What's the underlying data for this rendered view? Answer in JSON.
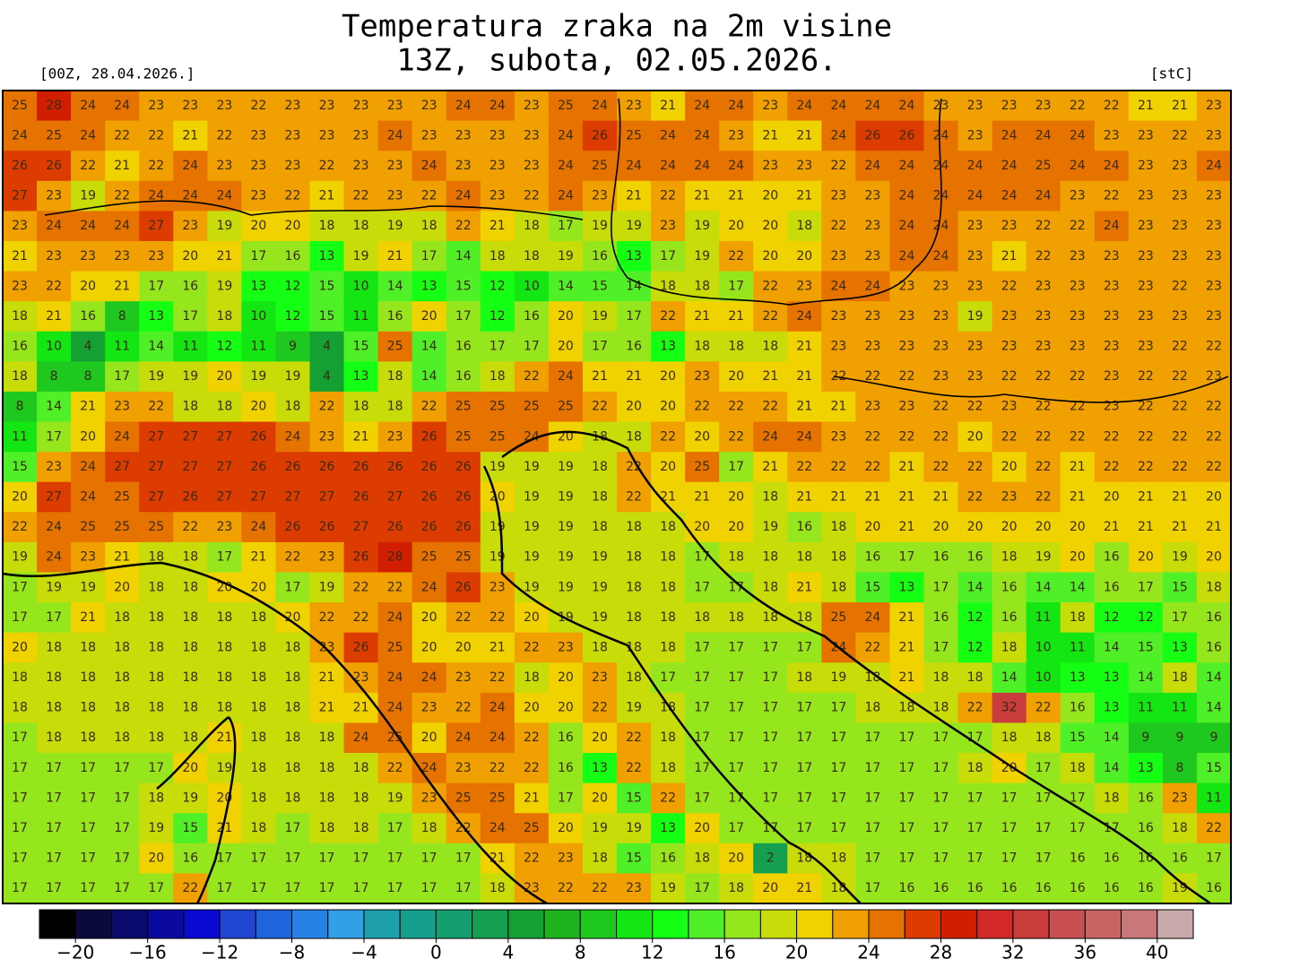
{
  "header": {
    "title": "Temperatura zraka na 2m visine",
    "subtitle": "13Z, subota, 02.05.2026.",
    "run": "[00Z, 28.04.2026.]",
    "unit": "[stC]"
  },
  "map": {
    "rows": [
      [
        25,
        28,
        24,
        24,
        23,
        23,
        23,
        22,
        23,
        23,
        23,
        23,
        23,
        24,
        24,
        23,
        25,
        24,
        23,
        21,
        24,
        24,
        23,
        24,
        24,
        24,
        24,
        23,
        23,
        23,
        23,
        22,
        22,
        21,
        21,
        23
      ],
      [
        24,
        25,
        24,
        22,
        22,
        21,
        22,
        23,
        23,
        23,
        23,
        24,
        23,
        23,
        23,
        23,
        24,
        26,
        25,
        24,
        24,
        23,
        21,
        21,
        24,
        26,
        26,
        24,
        23,
        24,
        24,
        24,
        23,
        23,
        22,
        23
      ],
      [
        26,
        26,
        22,
        21,
        22,
        24,
        23,
        23,
        23,
        22,
        23,
        23,
        24,
        23,
        23,
        23,
        24,
        25,
        24,
        24,
        24,
        24,
        23,
        23,
        22,
        24,
        24,
        24,
        24,
        24,
        25,
        24,
        24,
        23,
        23,
        24
      ],
      [
        27,
        23,
        19,
        22,
        24,
        24,
        24,
        23,
        22,
        21,
        22,
        23,
        22,
        24,
        23,
        22,
        24,
        23,
        21,
        22,
        21,
        21,
        20,
        21,
        23,
        23,
        24,
        24,
        24,
        24,
        24,
        23,
        22,
        23,
        23,
        23
      ],
      [
        23,
        24,
        24,
        24,
        27,
        23,
        19,
        20,
        20,
        18,
        18,
        19,
        18,
        22,
        21,
        18,
        17,
        19,
        19,
        23,
        19,
        20,
        20,
        18,
        22,
        23,
        24,
        24,
        23,
        23,
        22,
        22,
        24,
        23,
        23,
        23
      ],
      [
        21,
        23,
        23,
        23,
        23,
        20,
        21,
        17,
        16,
        13,
        19,
        21,
        17,
        14,
        18,
        18,
        19,
        16,
        13,
        17,
        19,
        22,
        20,
        20,
        23,
        23,
        24,
        24,
        23,
        21,
        22,
        23,
        23,
        23,
        23,
        23
      ],
      [
        23,
        22,
        20,
        21,
        17,
        16,
        19,
        13,
        12,
        15,
        10,
        14,
        13,
        15,
        12,
        10,
        14,
        15,
        14,
        18,
        18,
        17,
        22,
        23,
        24,
        24,
        23,
        23,
        23,
        22,
        23,
        23,
        23,
        23,
        22,
        23
      ],
      [
        18,
        21,
        16,
        8,
        13,
        17,
        18,
        10,
        12,
        15,
        11,
        16,
        20,
        17,
        12,
        16,
        20,
        19,
        17,
        22,
        21,
        21,
        22,
        24,
        23,
        23,
        23,
        23,
        19,
        23,
        23,
        23,
        23,
        23,
        23,
        23
      ],
      [
        16,
        10,
        4,
        11,
        14,
        11,
        12,
        11,
        9,
        4,
        15,
        25,
        14,
        16,
        17,
        17,
        20,
        17,
        16,
        13,
        18,
        18,
        18,
        21,
        23,
        23,
        23,
        23,
        23,
        23,
        23,
        23,
        23,
        23,
        22,
        22
      ],
      [
        18,
        8,
        8,
        17,
        19,
        19,
        20,
        19,
        19,
        4,
        13,
        18,
        14,
        16,
        18,
        22,
        24,
        21,
        21,
        20,
        23,
        20,
        21,
        21,
        22,
        22,
        22,
        23,
        23,
        22,
        22,
        22,
        23,
        22,
        22,
        23
      ],
      [
        8,
        14,
        21,
        23,
        22,
        18,
        18,
        20,
        18,
        22,
        18,
        18,
        22,
        25,
        25,
        25,
        25,
        22,
        20,
        20,
        22,
        22,
        22,
        21,
        21,
        23,
        23,
        22,
        22,
        23,
        22,
        22,
        23,
        22,
        22,
        22
      ],
      [
        11,
        17,
        20,
        24,
        27,
        27,
        27,
        26,
        24,
        23,
        21,
        23,
        26,
        25,
        25,
        24,
        20,
        18,
        18,
        22,
        20,
        22,
        24,
        24,
        23,
        22,
        22,
        22,
        20,
        22,
        22,
        22,
        22,
        22,
        22,
        22
      ],
      [
        15,
        23,
        24,
        27,
        27,
        27,
        27,
        26,
        26,
        26,
        26,
        26,
        26,
        26,
        19,
        19,
        19,
        18,
        22,
        20,
        25,
        17,
        21,
        22,
        22,
        22,
        21,
        22,
        22,
        20,
        22,
        21,
        22,
        22,
        22,
        22
      ],
      [
        20,
        27,
        24,
        25,
        27,
        26,
        27,
        27,
        27,
        27,
        26,
        27,
        26,
        26,
        20,
        19,
        19,
        18,
        22,
        21,
        21,
        20,
        18,
        21,
        21,
        21,
        21,
        21,
        22,
        23,
        22,
        21,
        20,
        21,
        21,
        20
      ],
      [
        22,
        24,
        25,
        25,
        25,
        22,
        23,
        24,
        26,
        26,
        27,
        26,
        26,
        26,
        19,
        19,
        19,
        18,
        18,
        18,
        20,
        20,
        19,
        16,
        18,
        20,
        21,
        20,
        20,
        20,
        20,
        20,
        21,
        21,
        21,
        21
      ],
      [
        19,
        24,
        23,
        21,
        18,
        18,
        17,
        21,
        22,
        23,
        26,
        28,
        25,
        25,
        19,
        19,
        19,
        19,
        18,
        18,
        17,
        18,
        18,
        18,
        18,
        16,
        17,
        16,
        16,
        18,
        19,
        20,
        16,
        20,
        19,
        20
      ],
      [
        17,
        19,
        19,
        20,
        18,
        18,
        20,
        20,
        17,
        19,
        22,
        22,
        24,
        26,
        23,
        19,
        19,
        19,
        18,
        18,
        17,
        17,
        18,
        21,
        18,
        15,
        13,
        17,
        14,
        16,
        14,
        14,
        16,
        17,
        15,
        18
      ],
      [
        17,
        17,
        21,
        18,
        18,
        18,
        18,
        18,
        20,
        22,
        22,
        24,
        20,
        22,
        22,
        20,
        19,
        19,
        18,
        18,
        18,
        18,
        18,
        18,
        25,
        24,
        21,
        16,
        12,
        16,
        11,
        18,
        12,
        12,
        17,
        16
      ],
      [
        20,
        18,
        18,
        18,
        18,
        18,
        18,
        18,
        18,
        23,
        26,
        25,
        20,
        20,
        21,
        22,
        23,
        18,
        18,
        18,
        17,
        17,
        17,
        17,
        24,
        22,
        21,
        17,
        12,
        18,
        10,
        11,
        14,
        15,
        13,
        16
      ],
      [
        18,
        18,
        18,
        18,
        18,
        18,
        18,
        18,
        18,
        21,
        23,
        24,
        24,
        23,
        22,
        18,
        20,
        23,
        18,
        17,
        17,
        17,
        17,
        18,
        19,
        18,
        21,
        18,
        18,
        14,
        10,
        13,
        13,
        14,
        18,
        14
      ],
      [
        18,
        18,
        18,
        18,
        18,
        18,
        18,
        18,
        18,
        21,
        21,
        24,
        23,
        22,
        24,
        20,
        20,
        22,
        19,
        18,
        17,
        17,
        17,
        17,
        17,
        18,
        18,
        18,
        22,
        32,
        22,
        16,
        13,
        11,
        11,
        14
      ],
      [
        17,
        18,
        18,
        18,
        18,
        18,
        21,
        18,
        18,
        18,
        24,
        25,
        20,
        24,
        24,
        22,
        16,
        20,
        22,
        18,
        17,
        17,
        17,
        17,
        17,
        17,
        17,
        17,
        17,
        18,
        18,
        15,
        14,
        9,
        9,
        9
      ],
      [
        17,
        17,
        17,
        17,
        17,
        20,
        19,
        18,
        18,
        18,
        18,
        22,
        24,
        23,
        22,
        22,
        16,
        13,
        22,
        18,
        17,
        17,
        17,
        17,
        17,
        17,
        17,
        17,
        18,
        20,
        17,
        18,
        14,
        13,
        8,
        15
      ],
      [
        17,
        17,
        17,
        17,
        18,
        19,
        20,
        18,
        18,
        18,
        18,
        19,
        23,
        25,
        25,
        21,
        17,
        20,
        15,
        22,
        17,
        17,
        17,
        17,
        17,
        17,
        17,
        17,
        17,
        17,
        17,
        17,
        18,
        16,
        23,
        11
      ],
      [
        17,
        17,
        17,
        17,
        19,
        15,
        21,
        18,
        17,
        18,
        18,
        17,
        18,
        22,
        24,
        25,
        20,
        19,
        19,
        13,
        20,
        17,
        17,
        17,
        17,
        17,
        17,
        17,
        17,
        17,
        17,
        17,
        17,
        16,
        18,
        22
      ],
      [
        17,
        17,
        17,
        17,
        20,
        16,
        17,
        17,
        17,
        17,
        17,
        17,
        17,
        17,
        21,
        22,
        23,
        18,
        15,
        16,
        18,
        20,
        2,
        18,
        18,
        17,
        17,
        17,
        17,
        17,
        17,
        16,
        16,
        16,
        16,
        17
      ],
      [
        17,
        17,
        17,
        17,
        17,
        22,
        17,
        17,
        17,
        17,
        17,
        17,
        17,
        17,
        18,
        23,
        22,
        22,
        23,
        19,
        17,
        18,
        20,
        21,
        18,
        17,
        16,
        16,
        16,
        16,
        16,
        16,
        16,
        16,
        19,
        16
      ]
    ]
  },
  "colorbar": {
    "lim": [
      -22,
      42
    ],
    "colors": [
      "#000000",
      "#0a0a3c",
      "#0a0a6e",
      "#0a0aa0",
      "#0a0ad2",
      "#1e46d2",
      "#1e64dc",
      "#2882e6",
      "#32a0e6",
      "#1ea0aa",
      "#14a08c",
      "#14a06e",
      "#14a050",
      "#14a032",
      "#1eb41e",
      "#1ec81e",
      "#14e614",
      "#14ff14",
      "#50f028",
      "#96e61e",
      "#c8dc0a",
      "#f0d200",
      "#f0a000",
      "#e67300",
      "#dc3c00",
      "#d21e00",
      "#d22828",
      "#c83c3c",
      "#c85050",
      "#c86464",
      "#c87878",
      "#c8aaaa"
    ],
    "ticks": [
      {
        "value": -20,
        "label": "−20"
      },
      {
        "value": -16,
        "label": "−16"
      },
      {
        "value": -12,
        "label": "−12"
      },
      {
        "value": -8,
        "label": "−8"
      },
      {
        "value": -4,
        "label": "−4"
      },
      0,
      4,
      8,
      12,
      16,
      20,
      24,
      28,
      32,
      36,
      40
    ]
  }
}
